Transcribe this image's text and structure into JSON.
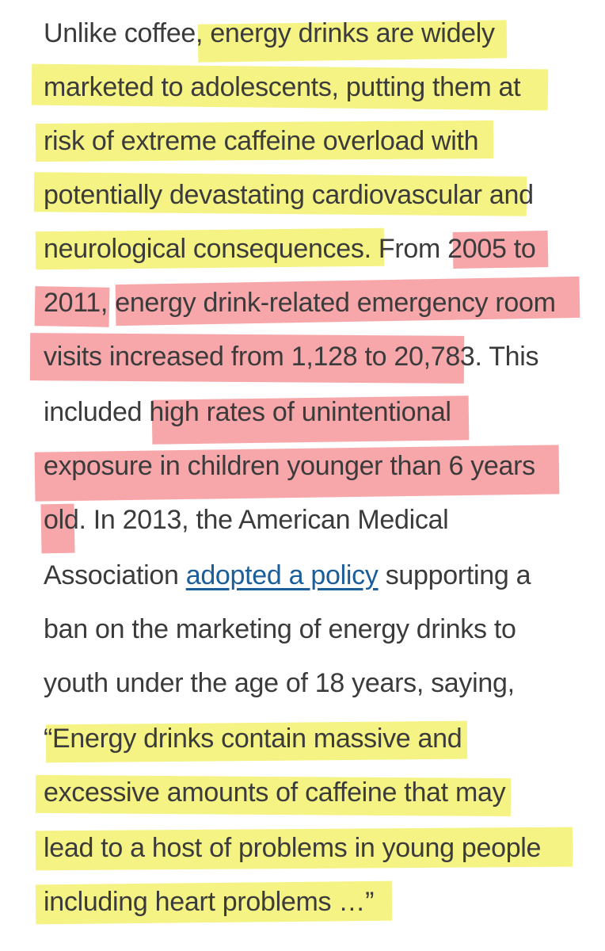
{
  "lines": [
    {
      "a": "Unlike coffee, energy drinks are widely"
    },
    {
      "a": "marketed to adolescents, putting them at"
    },
    {
      "a": "risk of extreme caffeine overload with"
    },
    {
      "a": "potentially devastating cardiovascular and"
    },
    {
      "a": "neurological consequences. From 2005 to"
    },
    {
      "a": "2011, energy drink-related emergency room"
    },
    {
      "a": "visits increased from 1,128 to 20,783. This"
    },
    {
      "a": "included high rates of unintentional"
    },
    {
      "a": "exposure in children younger than 6 years"
    },
    {
      "a": "old. In 2013, the American Medical"
    },
    {
      "a": "Association ",
      "link": "adopted a policy",
      "b": " supporting a"
    },
    {
      "a": "ban on the marketing of energy drinks to"
    },
    {
      "a": "youth under the age of 18 years, saying,"
    },
    {
      "a": "“Energy drinks contain massive and"
    },
    {
      "a": "excessive amounts of caffeine that may"
    },
    {
      "a": "lead to a host of problems in young people"
    },
    {
      "a": "including heart problems …”"
    }
  ],
  "highlight_colors": {
    "yellow": "#f5f383",
    "pink": "#f7a6aa"
  },
  "text_color": "#3b3b3b",
  "link_color": "#1b5e9a"
}
